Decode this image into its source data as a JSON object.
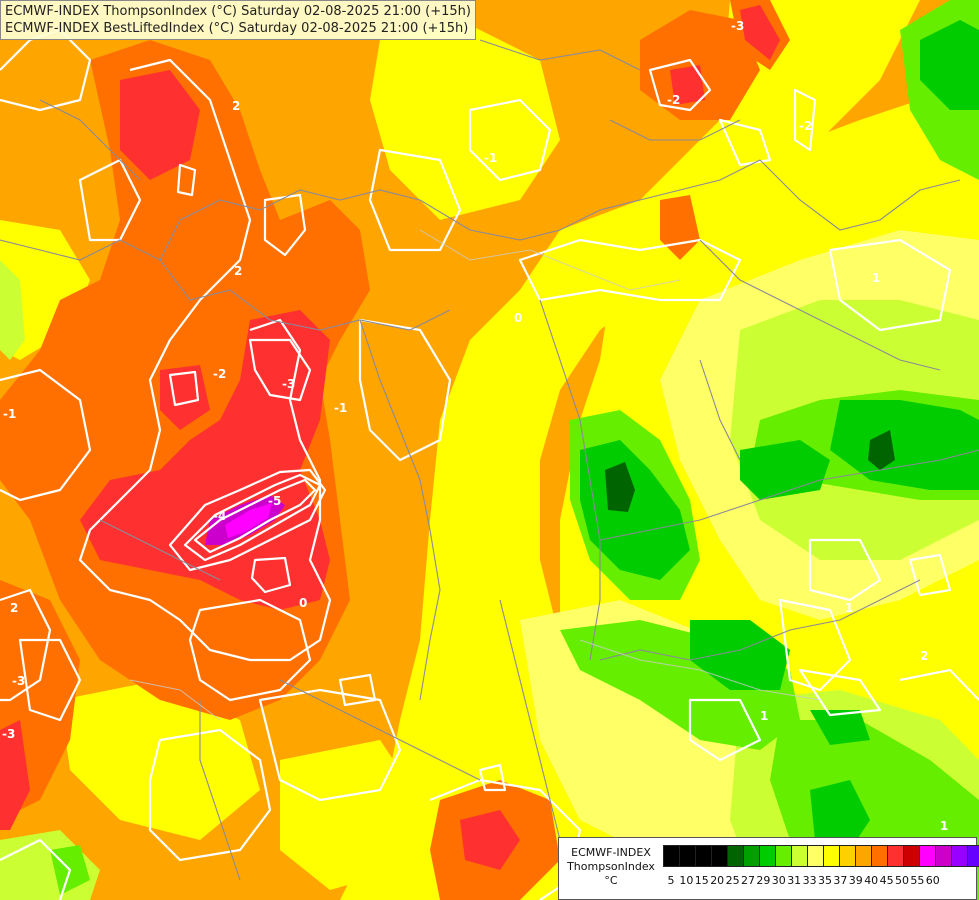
{
  "title": {
    "line1": "ECMWF-INDEX ThompsonIndex (°C) Saturday 02-08-2025 21:00 (+15h)",
    "line2": "ECMWF-INDEX BestLiftedIndex (°C) Saturday 02-08-2025 21:00 (+15h)"
  },
  "legend": {
    "model": "ECMWF-INDEX",
    "parameter": "ThompsonIndex",
    "unit": "°C",
    "ticks": [
      "5",
      "10",
      "15",
      "20",
      "25",
      "27",
      "29",
      "30",
      "31",
      "33",
      "35",
      "37",
      "39",
      "40",
      "45",
      "50",
      "55",
      "60"
    ],
    "colors": [
      "#000000",
      "#000000",
      "#000000",
      "#000000",
      "#006400",
      "#00a000",
      "#00cc00",
      "#66ee00",
      "#ccff33",
      "#ffff66",
      "#ffff00",
      "#ffd000",
      "#ffa500",
      "#ff7000",
      "#ff3030",
      "#cc0000",
      "#ff00ff",
      "#cc00cc",
      "#9900ff",
      "#6600ff",
      "#3333ff",
      "#0000ff"
    ]
  },
  "palette": {
    "orange": "#ffa500",
    "deep_orange": "#ff7000",
    "red": "#ff3030",
    "magenta": "#ff00ff",
    "yellow": "#ffff00",
    "light_yellow": "#ffff66",
    "pale_yellow": "#ffff99",
    "yellow_green": "#ccff33",
    "light_green": "#66ee00",
    "green": "#00cc00",
    "mid_green": "#00a000",
    "dark_green": "#006400"
  },
  "contour_labels": [
    "2",
    "2",
    "2",
    "-2",
    "-3",
    "-3",
    "-5",
    "-4",
    "-1",
    "-1",
    "-1",
    "0",
    "0",
    "-2",
    "-3",
    "-2",
    "-3",
    "1",
    "1",
    "1",
    "2",
    "1"
  ]
}
